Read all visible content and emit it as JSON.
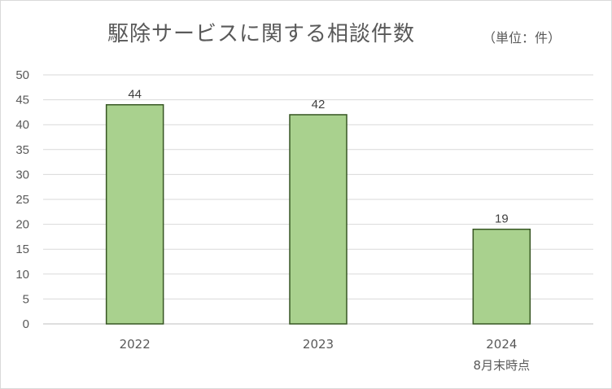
{
  "chart_data": {
    "type": "bar",
    "title": "駆除サービスに関する相談件数",
    "unit_note": "（単位：件）",
    "categories": [
      "2022",
      "2023",
      "2024"
    ],
    "category_sublabels": [
      "",
      "",
      "8月末時点"
    ],
    "values": [
      44,
      42,
      19
    ],
    "ylim": [
      0,
      50
    ],
    "yticks": [
      0,
      5,
      10,
      15,
      20,
      25,
      30,
      35,
      40,
      45,
      50
    ],
    "grid": true,
    "data_labels": true,
    "bar_color": "#a9d18e",
    "bar_edge_color": "#375623",
    "xlabel": "",
    "ylabel": ""
  }
}
